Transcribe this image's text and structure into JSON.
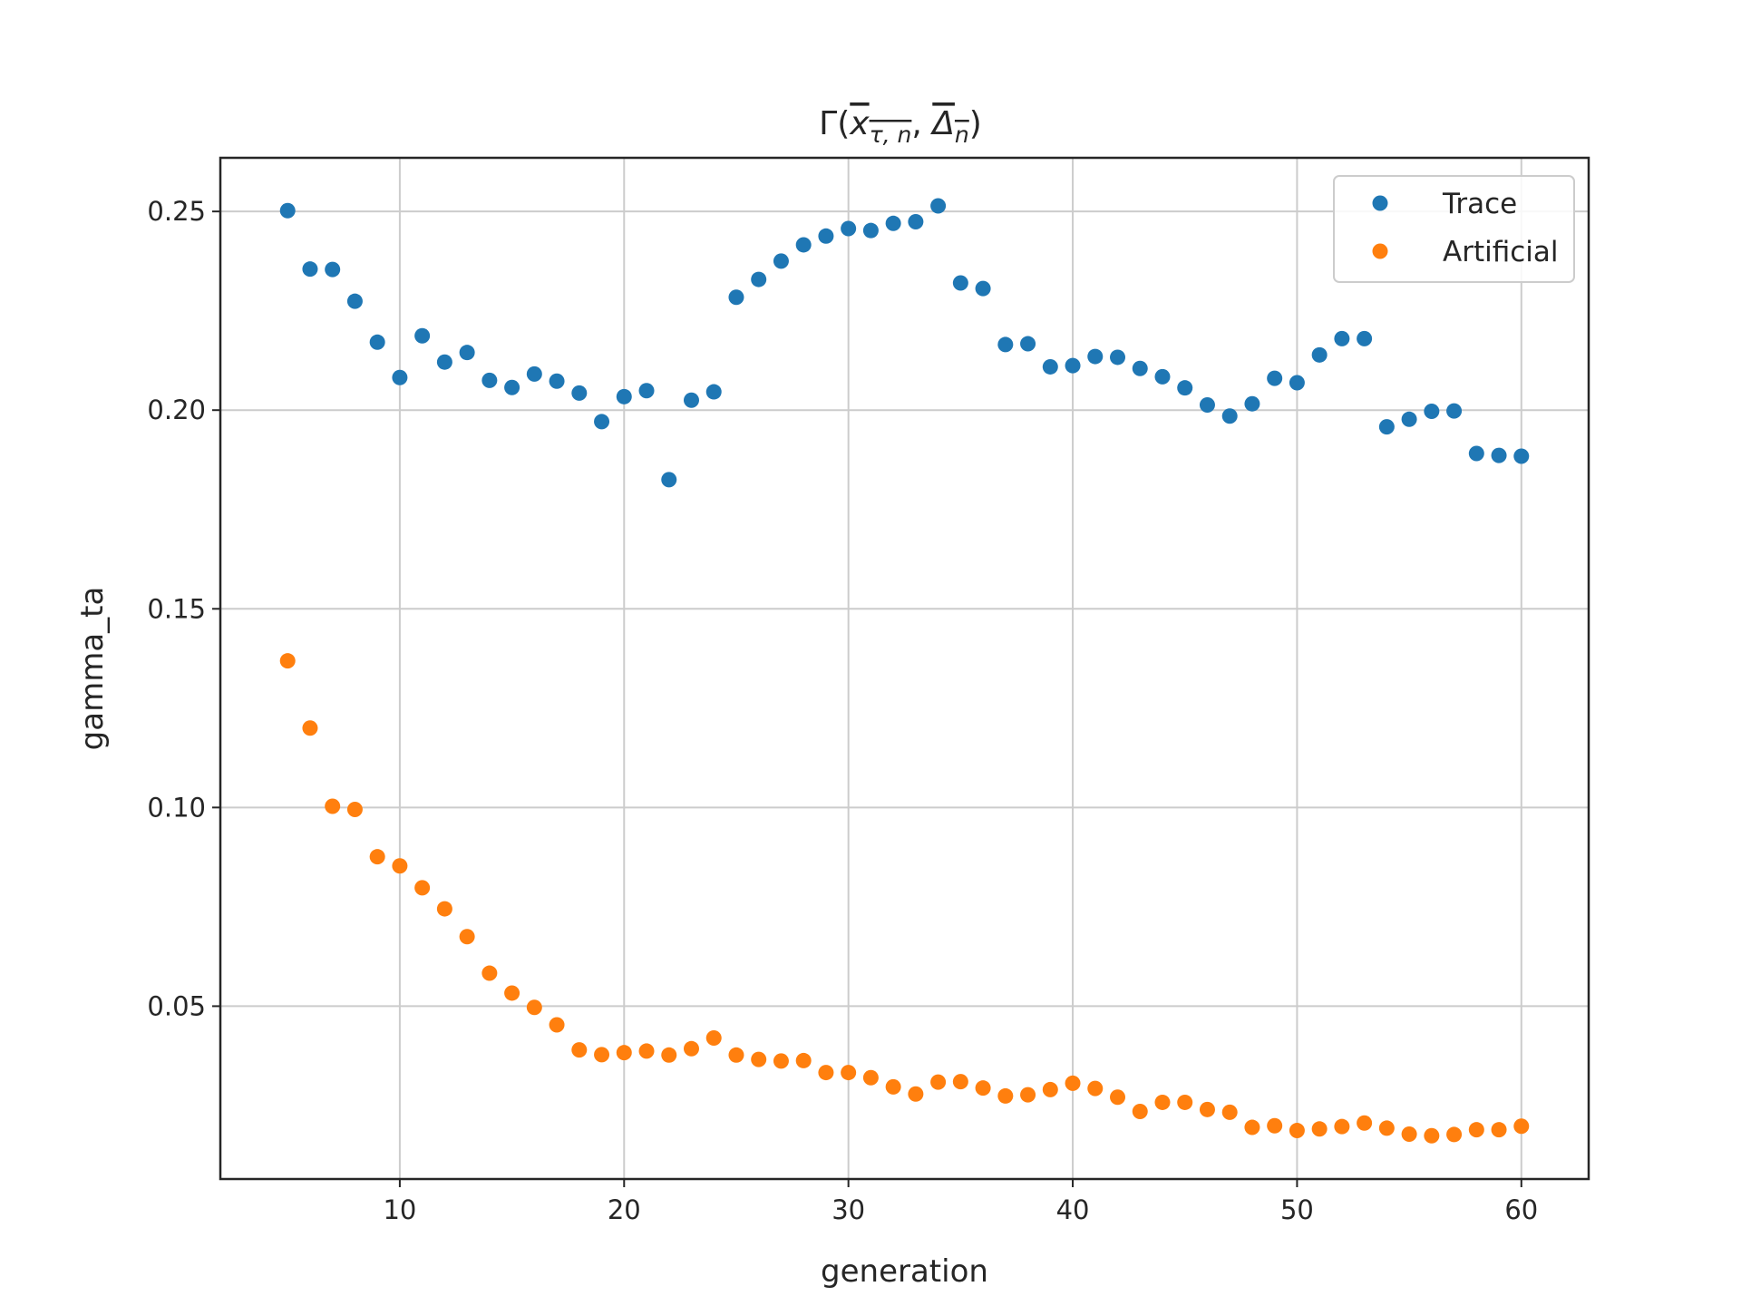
{
  "chart_data": {
    "type": "scatter",
    "title": "Γ(x̄τ,n, Δ̄n)",
    "xlabel": "generation",
    "ylabel": "gamma_ta",
    "xlim": [
      2,
      63
    ],
    "ylim": [
      0.0065,
      0.2635
    ],
    "xticks": [
      10,
      20,
      30,
      40,
      50,
      60
    ],
    "yticks": [
      0.05,
      0.1,
      0.15,
      0.2,
      0.25
    ],
    "xtick_labels": [
      "10",
      "20",
      "30",
      "40",
      "50",
      "60"
    ],
    "ytick_labels": [
      "0.05",
      "0.10",
      "0.15",
      "0.20",
      "0.25"
    ],
    "grid": true,
    "legend_position": "top-right",
    "x": [
      5,
      6,
      7,
      8,
      9,
      10,
      11,
      12,
      13,
      14,
      15,
      16,
      17,
      18,
      19,
      20,
      21,
      22,
      23,
      24,
      25,
      26,
      27,
      28,
      29,
      30,
      31,
      32,
      33,
      34,
      35,
      36,
      37,
      38,
      39,
      40,
      41,
      42,
      43,
      44,
      45,
      46,
      47,
      48,
      49,
      50,
      51,
      52,
      53,
      54,
      55,
      56,
      57,
      58,
      59,
      60
    ],
    "series": [
      {
        "name": "Trace",
        "color": "#1f77b4",
        "values": [
          0.2502,
          0.2355,
          0.2354,
          0.2274,
          0.2171,
          0.2082,
          0.2187,
          0.2121,
          0.2145,
          0.2075,
          0.2057,
          0.2091,
          0.2073,
          0.2043,
          0.1971,
          0.2034,
          0.2049,
          0.1825,
          0.2025,
          0.2046,
          0.2284,
          0.2329,
          0.2375,
          0.2416,
          0.2438,
          0.2457,
          0.2452,
          0.247,
          0.2474,
          0.2514,
          0.232,
          0.2306,
          0.2165,
          0.2167,
          0.2109,
          0.2112,
          0.2135,
          0.2133,
          0.2105,
          0.2084,
          0.2056,
          0.2013,
          0.1985,
          0.2016,
          0.208,
          0.2069,
          0.2139,
          0.218,
          0.218,
          0.1958,
          0.1977,
          0.1997,
          0.1998,
          0.1891,
          0.1886,
          0.1884
        ]
      },
      {
        "name": "Artificial",
        "color": "#ff7f0e",
        "values": [
          0.1369,
          0.12,
          0.1003,
          0.0995,
          0.0876,
          0.0853,
          0.0798,
          0.0745,
          0.0675,
          0.0583,
          0.0533,
          0.0497,
          0.0453,
          0.039,
          0.0378,
          0.0383,
          0.0387,
          0.0377,
          0.0393,
          0.042,
          0.0377,
          0.0366,
          0.0362,
          0.0363,
          0.0333,
          0.0333,
          0.032,
          0.0297,
          0.0279,
          0.0309,
          0.031,
          0.0294,
          0.0274,
          0.0277,
          0.029,
          0.0306,
          0.0293,
          0.0271,
          0.0235,
          0.0258,
          0.0258,
          0.024,
          0.0233,
          0.0195,
          0.0199,
          0.0187,
          0.0191,
          0.0197,
          0.0206,
          0.0193,
          0.0178,
          0.0174,
          0.0177,
          0.0189,
          0.0189,
          0.0198
        ]
      }
    ]
  }
}
